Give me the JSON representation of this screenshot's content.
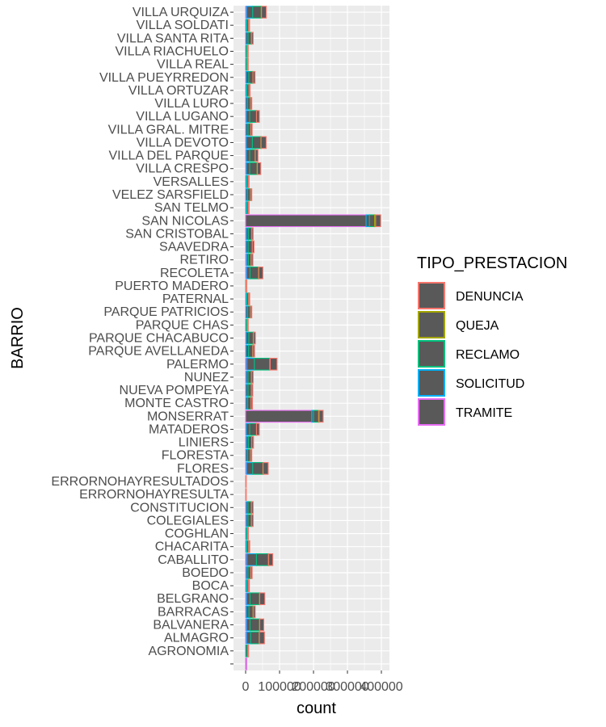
{
  "chart_data": {
    "type": "bar",
    "orientation": "horizontal",
    "stacked": true,
    "xlabel": "count",
    "ylabel": "BARRIO",
    "xlim": [
      0,
      410000
    ],
    "x_ticks": [
      0,
      100000,
      200000,
      300000,
      400000
    ],
    "x_tick_labels": [
      "0",
      "100000",
      "200000",
      "300000",
      "400000"
    ],
    "panel_background": "#ebebeb",
    "grid": true,
    "bar_fill": "#595959",
    "legend": {
      "title": "TIPO_PRESTACION",
      "position": "right"
    },
    "categories": [
      "",
      "AGRONOMIA",
      "ALMAGRO",
      "BALVANERA",
      "BARRACAS",
      "BELGRANO",
      "BOCA",
      "BOEDO",
      "CABALLITO",
      "CHACARITA",
      "COGHLAN",
      "COLEGIALES",
      "CONSTITUCION",
      "ERRORNOHAYRESULTA",
      "ERRORNOHAYRESULTADOS",
      "FLORES",
      "FLORESTA",
      "LINIERS",
      "MATADEROS",
      "MONSERRAT",
      "MONTE CASTRO",
      "NUEVA POMPEYA",
      "NUNEZ",
      "PALERMO",
      "PARQUE AVELLANEDA",
      "PARQUE CHACABUCO",
      "PARQUE CHAS",
      "PARQUE PATRICIOS",
      "PATERNAL",
      "PUERTO MADERO",
      "RECOLETA",
      "RETIRO",
      "SAAVEDRA",
      "SAN CRISTOBAL",
      "SAN NICOLAS",
      "SAN TELMO",
      "VELEZ SARSFIELD",
      "VERSALLES",
      "VILLA CRESPO",
      "VILLA DEL PARQUE",
      "VILLA DEVOTO",
      "VILLA GRAL. MITRE",
      "VILLA LUGANO",
      "VILLA LURO",
      "VILLA ORTUZAR",
      "VILLA PUEYRREDON",
      "VILLA REAL",
      "VILLA RIACHUELO",
      "VILLA SANTA RITA",
      "VILLA SOLDATI",
      "VILLA URQUIZA"
    ],
    "series": [
      {
        "name": "TRAMITE",
        "color": "#e76bf3",
        "values": [
          3000,
          0,
          3000,
          3000,
          2000,
          3000,
          1000,
          2000,
          4000,
          1000,
          1000,
          2000,
          2000,
          0,
          0,
          3000,
          1000,
          2000,
          2000,
          195000,
          1000,
          1000,
          2000,
          4000,
          1000,
          1500,
          500,
          1000,
          1000,
          200,
          3000,
          3000,
          1500,
          2000,
          355000,
          1000,
          1000,
          1000,
          2000,
          2000,
          2000,
          1000,
          2000,
          1000,
          1000,
          1500,
          500,
          500,
          1000,
          1000,
          3000
        ]
      },
      {
        "name": "SOLICITUD",
        "color": "#00b0f6",
        "values": [
          0,
          1500,
          12000,
          10000,
          8000,
          10000,
          3000,
          5000,
          28000,
          3000,
          2000,
          5000,
          5000,
          0,
          0,
          18000,
          5000,
          6000,
          10000,
          5000,
          5000,
          6000,
          5000,
          22000,
          8000,
          8000,
          2000,
          5000,
          3000,
          300,
          10000,
          5000,
          6000,
          6000,
          10000,
          3000,
          5000,
          3000,
          10000,
          10000,
          18000,
          6000,
          10000,
          5000,
          3000,
          8000,
          2000,
          2000,
          6000,
          3000,
          18000
        ]
      },
      {
        "name": "RECLAMO",
        "color": "#00bf7d",
        "values": [
          0,
          5000,
          25000,
          28000,
          12000,
          28000,
          4000,
          8000,
          35000,
          5000,
          3000,
          10000,
          10000,
          0,
          0,
          30000,
          8000,
          10000,
          20000,
          15000,
          10000,
          10000,
          10000,
          45000,
          12000,
          13000,
          3000,
          8000,
          5000,
          500,
          25000,
          8000,
          12000,
          10000,
          15000,
          4000,
          8000,
          4000,
          22000,
          16000,
          25000,
          8000,
          20000,
          8000,
          6000,
          12000,
          3000,
          3000,
          10000,
          5000,
          25000
        ]
      },
      {
        "name": "QUEJA",
        "color": "#a3a500",
        "values": [
          0,
          200,
          500,
          500,
          300,
          500,
          100,
          200,
          1000,
          200,
          100,
          300,
          300,
          0,
          0,
          500,
          200,
          200,
          300,
          1500,
          200,
          200,
          300,
          1500,
          300,
          300,
          100,
          200,
          100,
          50,
          800,
          500,
          300,
          300,
          3000,
          100,
          200,
          100,
          500,
          400,
          500,
          200,
          400,
          200,
          200,
          300,
          100,
          100,
          300,
          100,
          800
        ]
      },
      {
        "name": "DENUNCIA",
        "color": "#f8766d",
        "values": [
          0,
          1500,
          15000,
          12000,
          6000,
          15000,
          3000,
          4000,
          12000,
          3000,
          2000,
          5000,
          5000,
          300,
          200,
          15000,
          4000,
          5000,
          8000,
          12000,
          4000,
          4000,
          5000,
          20000,
          5000,
          6000,
          1500,
          4000,
          3000,
          1000,
          12000,
          5000,
          5000,
          4000,
          15000,
          2000,
          4000,
          2000,
          10000,
          8000,
          15000,
          4000,
          8000,
          4000,
          3000,
          6000,
          1500,
          1500,
          5000,
          2500,
          14000
        ]
      }
    ]
  }
}
